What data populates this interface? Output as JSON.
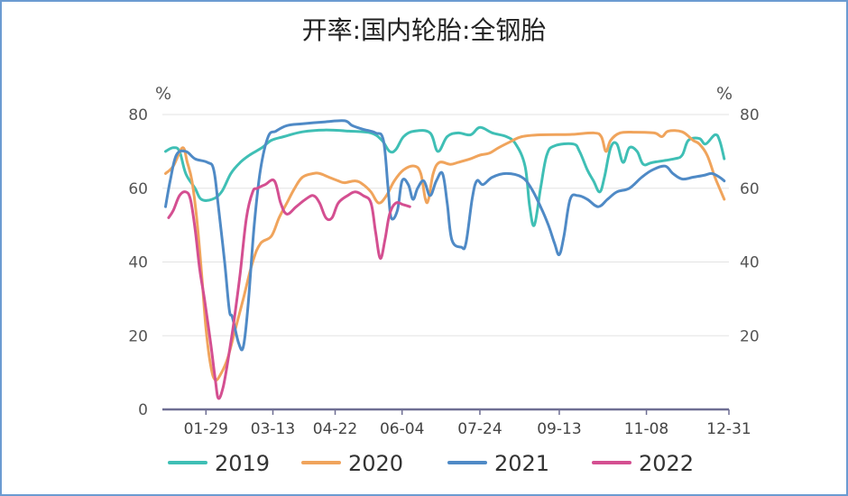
{
  "chart_data": {
    "type": "line",
    "title": "开率:国内轮胎:全钢胎",
    "y_unit_left": "%",
    "y_unit_right": "%",
    "ylim": [
      0,
      80
    ],
    "y_ticks": [
      "0",
      "20",
      "40",
      "60",
      "80"
    ],
    "y_ticks_right": [
      "20",
      "40",
      "60",
      "80"
    ],
    "x_domain": [
      "01-01",
      "12-31"
    ],
    "x_ticks": [
      {
        "label": "01-29",
        "date": "01-29"
      },
      {
        "label": "03-13",
        "date": "03-13"
      },
      {
        "label": "04-22",
        "date": "04-22"
      },
      {
        "label": "06-04",
        "date": "06-04"
      },
      {
        "label": "07-24",
        "date": "07-24"
      },
      {
        "label": "09-13",
        "date": "09-13"
      },
      {
        "label": "11-08",
        "date": "11-08"
      },
      {
        "label": "12-31",
        "date": "12-31"
      }
    ],
    "grid": "horizontal",
    "legend_position": "bottom",
    "series": [
      {
        "name": "2019",
        "color": "#3fbfb5",
        "points": [
          [
            "01-03",
            70
          ],
          [
            "01-08",
            71
          ],
          [
            "01-12",
            70
          ],
          [
            "01-16",
            64
          ],
          [
            "01-22",
            60
          ],
          [
            "01-26",
            57
          ],
          [
            "02-02",
            57
          ],
          [
            "02-08",
            59
          ],
          [
            "02-14",
            64
          ],
          [
            "02-20",
            67
          ],
          [
            "02-26",
            69
          ],
          [
            "03-06",
            71
          ],
          [
            "03-12",
            73
          ],
          [
            "03-20",
            74
          ],
          [
            "04-01",
            75.3
          ],
          [
            "04-15",
            75.8
          ],
          [
            "05-01",
            75.5
          ],
          [
            "05-15",
            75
          ],
          [
            "05-22",
            73
          ],
          [
            "05-27",
            70
          ],
          [
            "05-31",
            70.5
          ],
          [
            "06-05",
            74
          ],
          [
            "06-12",
            75.5
          ],
          [
            "06-22",
            75
          ],
          [
            "06-27",
            70
          ],
          [
            "07-03",
            74
          ],
          [
            "07-10",
            75
          ],
          [
            "07-18",
            74.5
          ],
          [
            "07-24",
            76.5
          ],
          [
            "08-01",
            75
          ],
          [
            "08-10",
            74
          ],
          [
            "08-16",
            72
          ],
          [
            "08-22",
            66
          ],
          [
            "08-25",
            55
          ],
          [
            "08-28",
            50
          ],
          [
            "09-01",
            60
          ],
          [
            "09-05",
            69
          ],
          [
            "09-10",
            71.5
          ],
          [
            "09-22",
            72
          ],
          [
            "09-26",
            70
          ],
          [
            "10-01",
            65
          ],
          [
            "10-05",
            62
          ],
          [
            "10-09",
            59
          ],
          [
            "10-12",
            63
          ],
          [
            "10-16",
            71
          ],
          [
            "10-20",
            72
          ],
          [
            "10-24",
            67
          ],
          [
            "10-28",
            71
          ],
          [
            "11-02",
            70
          ],
          [
            "11-06",
            66.5
          ],
          [
            "11-12",
            67
          ],
          [
            "11-26",
            68
          ],
          [
            "12-01",
            69
          ],
          [
            "12-05",
            73
          ],
          [
            "12-12",
            73.5
          ],
          [
            "12-16",
            72
          ],
          [
            "12-22",
            74.5
          ],
          [
            "12-25",
            73
          ],
          [
            "12-28",
            68
          ]
        ]
      },
      {
        "name": "2020",
        "color": "#f0a45c",
        "points": [
          [
            "01-03",
            64
          ],
          [
            "01-08",
            66
          ],
          [
            "01-14",
            71
          ],
          [
            "01-17",
            67
          ],
          [
            "01-20",
            62
          ],
          [
            "01-23",
            52
          ],
          [
            "01-26",
            38
          ],
          [
            "01-29",
            22
          ],
          [
            "02-01",
            12
          ],
          [
            "02-04",
            8
          ],
          [
            "02-08",
            10
          ],
          [
            "02-12",
            14
          ],
          [
            "02-17",
            22
          ],
          [
            "02-22",
            30
          ],
          [
            "02-28",
            40
          ],
          [
            "03-05",
            45
          ],
          [
            "03-12",
            47
          ],
          [
            "03-17",
            52
          ],
          [
            "03-22",
            56
          ],
          [
            "03-27",
            60
          ],
          [
            "04-01",
            63
          ],
          [
            "04-08",
            64
          ],
          [
            "04-12",
            64
          ],
          [
            "04-18",
            63
          ],
          [
            "04-24",
            62
          ],
          [
            "04-28",
            61.5
          ],
          [
            "05-05",
            62
          ],
          [
            "05-10",
            61
          ],
          [
            "05-15",
            59
          ],
          [
            "05-20",
            56
          ],
          [
            "05-25",
            58
          ],
          [
            "05-30",
            62
          ],
          [
            "06-05",
            65
          ],
          [
            "06-12",
            66
          ],
          [
            "06-16",
            64
          ],
          [
            "06-19",
            57
          ],
          [
            "06-21",
            57
          ],
          [
            "06-24",
            64
          ],
          [
            "06-28",
            67
          ],
          [
            "07-05",
            66.5
          ],
          [
            "07-10",
            67
          ],
          [
            "07-18",
            68
          ],
          [
            "07-24",
            69
          ],
          [
            "07-30",
            69.5
          ],
          [
            "08-05",
            71
          ],
          [
            "08-12",
            72.5
          ],
          [
            "08-20",
            74
          ],
          [
            "09-01",
            74.5
          ],
          [
            "09-20",
            74.6
          ],
          [
            "10-05",
            75
          ],
          [
            "10-10",
            74
          ],
          [
            "10-13",
            70
          ],
          [
            "10-16",
            73
          ],
          [
            "10-22",
            75
          ],
          [
            "11-01",
            75.2
          ],
          [
            "11-13",
            75
          ],
          [
            "11-18",
            74
          ],
          [
            "11-22",
            75.5
          ],
          [
            "12-01",
            75.3
          ],
          [
            "12-08",
            73
          ],
          [
            "12-12",
            72
          ],
          [
            "12-17",
            69
          ],
          [
            "12-22",
            63
          ],
          [
            "12-25",
            60
          ],
          [
            "12-28",
            57
          ]
        ]
      },
      {
        "name": "2021",
        "color": "#4f8ac6",
        "points": [
          [
            "01-03",
            55
          ],
          [
            "01-06",
            62
          ],
          [
            "01-10",
            69
          ],
          [
            "01-16",
            70
          ],
          [
            "01-22",
            68
          ],
          [
            "01-30",
            67
          ],
          [
            "02-03",
            65
          ],
          [
            "02-06",
            55
          ],
          [
            "02-10",
            40
          ],
          [
            "02-13",
            27
          ],
          [
            "02-15",
            25
          ],
          [
            "02-19",
            18
          ],
          [
            "02-22",
            17
          ],
          [
            "02-25",
            28
          ],
          [
            "03-01",
            50
          ],
          [
            "03-05",
            65
          ],
          [
            "03-10",
            74
          ],
          [
            "03-15",
            75.5
          ],
          [
            "03-22",
            77
          ],
          [
            "04-01",
            77.5
          ],
          [
            "04-15",
            78
          ],
          [
            "04-28",
            78.3
          ],
          [
            "05-03",
            77
          ],
          [
            "05-10",
            76
          ],
          [
            "05-18",
            75
          ],
          [
            "05-23",
            73
          ],
          [
            "05-26",
            60
          ],
          [
            "05-28",
            52
          ],
          [
            "06-01",
            54
          ],
          [
            "06-04",
            62
          ],
          [
            "06-08",
            61
          ],
          [
            "06-11",
            57
          ],
          [
            "06-14",
            60
          ],
          [
            "06-18",
            62
          ],
          [
            "06-22",
            58
          ],
          [
            "06-26",
            62
          ],
          [
            "06-30",
            64
          ],
          [
            "07-03",
            56
          ],
          [
            "07-06",
            46
          ],
          [
            "07-12",
            44
          ],
          [
            "07-15",
            45
          ],
          [
            "07-19",
            57
          ],
          [
            "07-22",
            62
          ],
          [
            "07-26",
            61
          ],
          [
            "08-01",
            63
          ],
          [
            "08-10",
            64
          ],
          [
            "08-20",
            63
          ],
          [
            "08-26",
            60
          ],
          [
            "09-01",
            55
          ],
          [
            "09-06",
            50
          ],
          [
            "09-10",
            45
          ],
          [
            "09-13",
            42
          ],
          [
            "09-16",
            47
          ],
          [
            "09-20",
            57
          ],
          [
            "09-25",
            58
          ],
          [
            "10-01",
            57
          ],
          [
            "10-08",
            55
          ],
          [
            "10-14",
            57
          ],
          [
            "10-20",
            59
          ],
          [
            "10-28",
            60
          ],
          [
            "11-05",
            63
          ],
          [
            "11-12",
            65
          ],
          [
            "11-20",
            66
          ],
          [
            "11-25",
            64
          ],
          [
            "12-01",
            62.5
          ],
          [
            "12-08",
            63
          ],
          [
            "12-15",
            63.5
          ],
          [
            "12-20",
            64
          ],
          [
            "12-25",
            63
          ],
          [
            "12-28",
            62
          ]
        ]
      },
      {
        "name": "2022",
        "color": "#d44f91",
        "points": [
          [
            "01-05",
            52
          ],
          [
            "01-08",
            54
          ],
          [
            "01-12",
            58
          ],
          [
            "01-16",
            59
          ],
          [
            "01-19",
            57
          ],
          [
            "01-22",
            49
          ],
          [
            "01-25",
            38
          ],
          [
            "01-28",
            30
          ],
          [
            "02-01",
            18
          ],
          [
            "02-04",
            8
          ],
          [
            "02-06",
            3
          ],
          [
            "02-09",
            6
          ],
          [
            "02-12",
            13
          ],
          [
            "02-16",
            24
          ],
          [
            "02-20",
            37
          ],
          [
            "02-24",
            52
          ],
          [
            "02-28",
            59
          ],
          [
            "03-03",
            60
          ],
          [
            "03-08",
            61
          ],
          [
            "03-14",
            62
          ],
          [
            "03-18",
            56
          ],
          [
            "03-22",
            53
          ],
          [
            "03-28",
            55
          ],
          [
            "04-03",
            57
          ],
          [
            "04-08",
            58
          ],
          [
            "04-12",
            56
          ],
          [
            "04-16",
            52
          ],
          [
            "04-20",
            52
          ],
          [
            "04-24",
            56
          ],
          [
            "04-30",
            58
          ],
          [
            "05-05",
            59
          ],
          [
            "05-10",
            58
          ],
          [
            "05-15",
            56
          ],
          [
            "05-18",
            48
          ],
          [
            "05-21",
            41
          ],
          [
            "05-24",
            46
          ],
          [
            "05-27",
            53
          ],
          [
            "05-31",
            56
          ],
          [
            "06-05",
            55.5
          ],
          [
            "06-09",
            55
          ]
        ]
      }
    ]
  }
}
